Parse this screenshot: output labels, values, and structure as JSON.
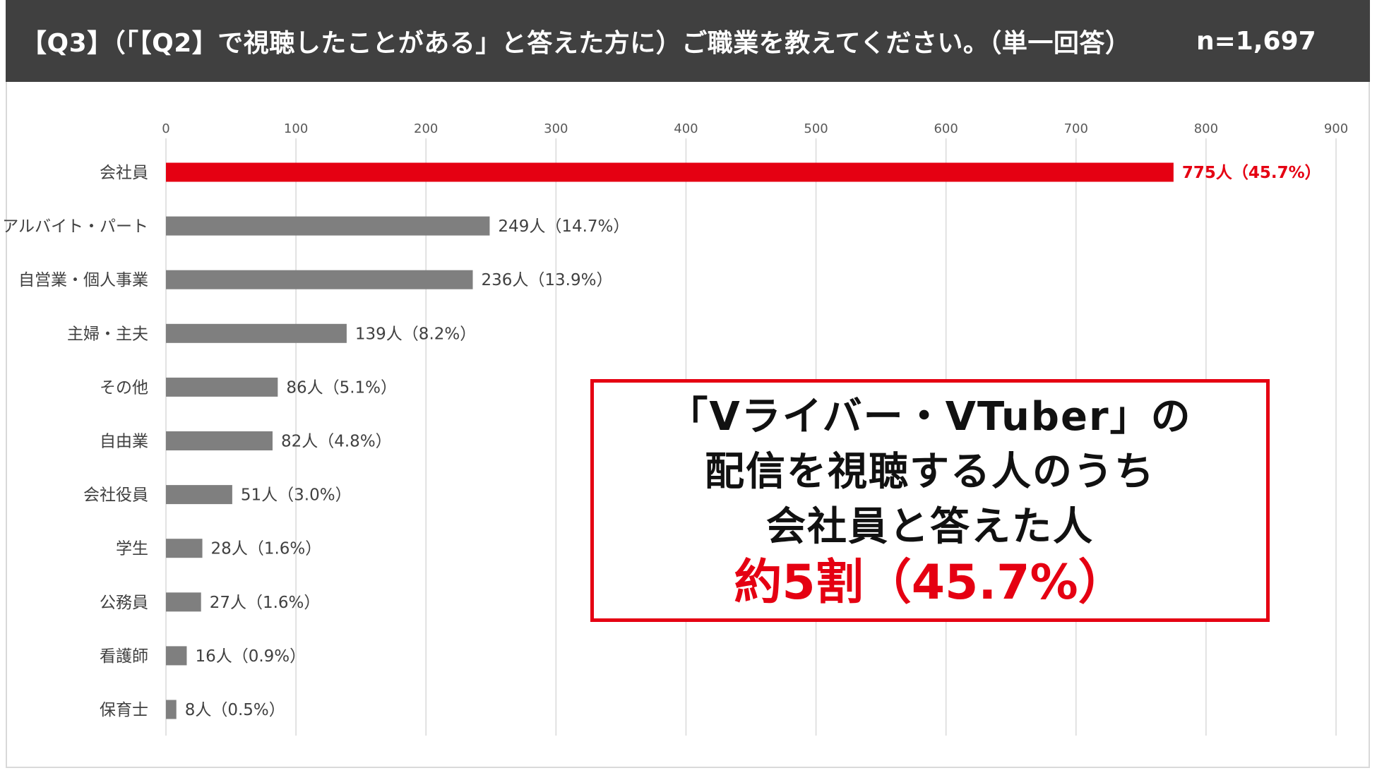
{
  "header": {
    "question": "【Q3】（「【Q2】で視聴したことがある」と答えた方に）ご職業を教えてください。（単一回答）",
    "n": "n=1,697"
  },
  "colors": {
    "header_bg": "#404040",
    "highlight": "#e50012",
    "bar": "#7f7f7f",
    "grid": "#d9d9d9"
  },
  "chart_data": {
    "type": "bar",
    "orientation": "horizontal",
    "categories": [
      "会社員",
      "アルバイト・パート",
      "自営業・個人事業",
      "主婦・主夫",
      "その他",
      "自由業",
      "会社役員",
      "学生",
      "公務員",
      "看護師",
      "保育士"
    ],
    "values": [
      775,
      249,
      236,
      139,
      86,
      82,
      51,
      28,
      27,
      16,
      8
    ],
    "data_labels": [
      "775人（45.7%）",
      "249人（14.7%）",
      "236人（13.9%）",
      "139人（8.2%）",
      "86人（5.1%）",
      "82人（4.8%）",
      "51人（3.0%）",
      "28人（1.6%）",
      "27人（1.6%）",
      "16人（0.9%）",
      "8人（0.5%）"
    ],
    "highlight_index": 0,
    "xlim": [
      0,
      900
    ],
    "xticks": [
      "0",
      "100",
      "200",
      "300",
      "400",
      "500",
      "600",
      "700",
      "800",
      "900"
    ],
    "xaxis_position": "top",
    "grid": true,
    "legend": false
  },
  "callout": {
    "line1": "「Vライバー・VTuber」の",
    "line2": "配信を視聴する人のうち",
    "line3": "会社員と答えた人",
    "highlight": "約5割（45.7%）"
  }
}
